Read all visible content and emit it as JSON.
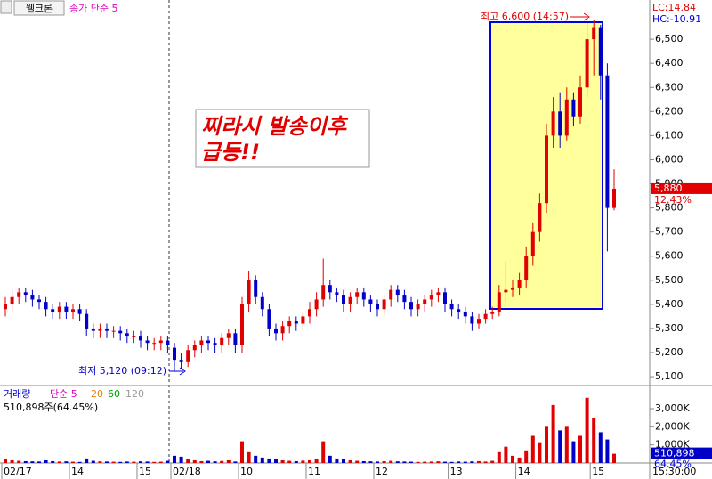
{
  "header": {
    "name": "웰크론",
    "indicator": "종가 단순 5",
    "lc": "LC:14.84",
    "hc": "HC:-10.91",
    "time": "15:30:00"
  },
  "annotation": {
    "lines": [
      "찌라시 발송이후",
      "급등!!"
    ]
  },
  "chart_data": {
    "type": "candlestick",
    "open": [
      5380,
      5400,
      5430,
      5450,
      5440,
      5420,
      5410,
      5380,
      5370,
      5390,
      5370,
      5380,
      5360,
      5300,
      5290,
      5300,
      5290,
      5290,
      5280,
      5270,
      5270,
      5250,
      5240,
      5240,
      5250,
      5220,
      5170,
      5160,
      5210,
      5230,
      5250,
      5240,
      5230,
      5260,
      5280,
      5230,
      5400,
      5500,
      5430,
      5380,
      5300,
      5280,
      5310,
      5330,
      5320,
      5350,
      5380,
      5420,
      5480,
      5450,
      5440,
      5400,
      5430,
      5450,
      5420,
      5400,
      5380,
      5420,
      5460,
      5440,
      5410,
      5380,
      5400,
      5420,
      5440,
      5450,
      5400,
      5380,
      5370,
      5350,
      5320,
      5340,
      5360,
      5370,
      5450,
      5460,
      5470,
      5500,
      5600,
      5700,
      5820,
      6100,
      6200,
      6100,
      6250,
      6180,
      6300,
      6500,
      6550,
      6350,
      5800
    ],
    "high": [
      5430,
      5460,
      5470,
      5470,
      5460,
      5440,
      5430,
      5400,
      5410,
      5410,
      5400,
      5400,
      5380,
      5320,
      5320,
      5320,
      5310,
      5310,
      5300,
      5290,
      5290,
      5270,
      5260,
      5270,
      5270,
      5240,
      5200,
      5230,
      5250,
      5270,
      5270,
      5260,
      5280,
      5300,
      5300,
      5430,
      5540,
      5520,
      5450,
      5400,
      5320,
      5330,
      5350,
      5350,
      5370,
      5410,
      5450,
      5590,
      5500,
      5470,
      5460,
      5450,
      5470,
      5470,
      5440,
      5420,
      5440,
      5480,
      5480,
      5460,
      5430,
      5420,
      5440,
      5460,
      5470,
      5470,
      5420,
      5400,
      5390,
      5370,
      5360,
      5380,
      5390,
      5480,
      5580,
      5500,
      5530,
      5640,
      5740,
      5860,
      6150,
      6260,
      6280,
      6300,
      6280,
      6350,
      6600,
      6580,
      6560,
      6400,
      5960
    ],
    "low": [
      5350,
      5370,
      5400,
      5410,
      5390,
      5380,
      5350,
      5340,
      5340,
      5340,
      5340,
      5330,
      5270,
      5260,
      5260,
      5260,
      5260,
      5250,
      5240,
      5240,
      5220,
      5210,
      5210,
      5210,
      5200,
      5120,
      5130,
      5140,
      5180,
      5200,
      5210,
      5200,
      5200,
      5230,
      5200,
      5200,
      5370,
      5400,
      5350,
      5270,
      5250,
      5250,
      5280,
      5290,
      5290,
      5320,
      5350,
      5390,
      5420,
      5410,
      5370,
      5370,
      5400,
      5390,
      5370,
      5350,
      5350,
      5390,
      5410,
      5380,
      5350,
      5350,
      5370,
      5390,
      5410,
      5370,
      5350,
      5340,
      5320,
      5290,
      5300,
      5320,
      5340,
      5350,
      5410,
      5430,
      5440,
      5470,
      5560,
      5660,
      5780,
      6050,
      6050,
      6080,
      6140,
      6150,
      6260,
      6350,
      6250,
      5620,
      5790
    ],
    "close": [
      5400,
      5430,
      5450,
      5440,
      5420,
      5410,
      5380,
      5370,
      5390,
      5370,
      5380,
      5360,
      5300,
      5290,
      5300,
      5290,
      5290,
      5280,
      5270,
      5270,
      5250,
      5240,
      5240,
      5250,
      5230,
      5170,
      5160,
      5210,
      5230,
      5250,
      5240,
      5230,
      5260,
      5280,
      5230,
      5400,
      5500,
      5430,
      5380,
      5300,
      5280,
      5310,
      5330,
      5320,
      5350,
      5380,
      5420,
      5480,
      5450,
      5440,
      5400,
      5430,
      5450,
      5420,
      5400,
      5380,
      5420,
      5460,
      5440,
      5410,
      5380,
      5400,
      5420,
      5440,
      5450,
      5400,
      5380,
      5370,
      5350,
      5320,
      5340,
      5360,
      5370,
      5450,
      5460,
      5470,
      5500,
      5600,
      5700,
      5820,
      6100,
      6200,
      6100,
      6250,
      6180,
      6300,
      6500,
      6550,
      6350,
      5800,
      5880
    ],
    "up_color": "#e00000",
    "down_color": "#0000c8",
    "ylim": [
      5067,
      6663
    ],
    "yticks": [
      {
        "value": 5100,
        "label": "5,100"
      },
      {
        "value": 5200,
        "label": "5,200"
      },
      {
        "value": 5300,
        "label": "5,300"
      },
      {
        "value": 5400,
        "label": "5,400"
      },
      {
        "value": 5500,
        "label": "5,500"
      },
      {
        "value": 5600,
        "label": "5,600"
      },
      {
        "value": 5700,
        "label": "5,700"
      },
      {
        "value": 5800,
        "label": "5,800"
      },
      {
        "value": 5900,
        "label": "5,900"
      },
      {
        "value": 6000,
        "label": "6,000"
      },
      {
        "value": 6100,
        "label": "6,100"
      },
      {
        "value": 6200,
        "label": "6,200"
      },
      {
        "value": 6300,
        "label": "6,300"
      },
      {
        "value": 6400,
        "label": "6,400"
      },
      {
        "value": 6500,
        "label": "6,500"
      }
    ],
    "xticks": [
      {
        "value": 0,
        "label": "02/17"
      },
      {
        "value": 10,
        "label": "14"
      },
      {
        "value": 20,
        "label": "15"
      },
      {
        "value": 25,
        "label": "02/18"
      },
      {
        "value": 35,
        "label": "10"
      },
      {
        "value": 45,
        "label": "11"
      },
      {
        "value": 55,
        "label": "12"
      },
      {
        "value": 66,
        "label": "13"
      },
      {
        "value": 76,
        "label": "14"
      },
      {
        "value": 87,
        "label": "15"
      }
    ],
    "high_label": "최고 6,600 (14:57)",
    "low_label": "최저 5,120 (09:12)",
    "last_price": {
      "value": 5880,
      "label": "5,880"
    },
    "change": "12.43%",
    "volume": {
      "title": "거래량",
      "ma_labels": [
        "단순 5",
        "20",
        "60",
        "120"
      ],
      "summary": "510,898주(64.45%)",
      "values": [
        200000,
        150000,
        120000,
        100000,
        90000,
        80000,
        150000,
        100000,
        80000,
        90000,
        70000,
        60000,
        250000,
        120000,
        90000,
        80000,
        70000,
        60000,
        80000,
        70000,
        90000,
        80000,
        60000,
        70000,
        120000,
        400000,
        350000,
        200000,
        150000,
        100000,
        120000,
        90000,
        110000,
        150000,
        80000,
        1200000,
        600000,
        400000,
        300000,
        250000,
        200000,
        150000,
        120000,
        100000,
        130000,
        150000,
        200000,
        1200000,
        400000,
        250000,
        200000,
        150000,
        120000,
        100000,
        90000,
        80000,
        100000,
        120000,
        90000,
        80000,
        70000,
        60000,
        70000,
        80000,
        90000,
        70000,
        60000,
        80000,
        70000,
        90000,
        100000,
        80000,
        120000,
        600000,
        900000,
        400000,
        300000,
        700000,
        1500000,
        1100000,
        2000000,
        3200000,
        1800000,
        2000000,
        1200000,
        1500000,
        3600000,
        2500000,
        1700000,
        1300000,
        510898
      ],
      "ylim": [
        0,
        4180000
      ],
      "yticks": [
        {
          "value": 1000000,
          "label": "1,000K"
        },
        {
          "value": 2000000,
          "label": "2,000K"
        },
        {
          "value": 3000000,
          "label": "3,000K"
        }
      ],
      "last": {
        "value": 510898,
        "label": "510,898"
      },
      "ratio": "64.45%"
    }
  }
}
